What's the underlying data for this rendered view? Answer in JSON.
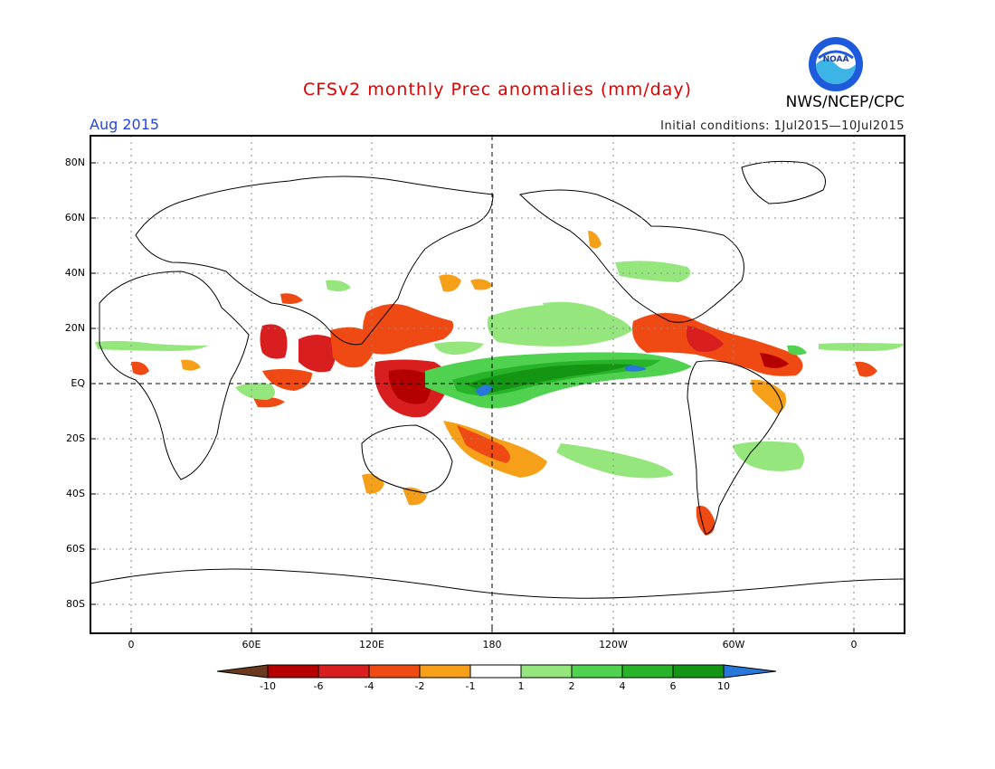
{
  "header": {
    "title": "CFSv2 monthly Prec anomalies (mm/day)",
    "agency": "NWS/NCEP/CPC",
    "valid_month": "Aug 2015",
    "initial_conditions": "Initial conditions: 1Jul2015—10Jul2015",
    "logo_text": "NOAA"
  },
  "axes": {
    "lat_labels": [
      "80N",
      "60N",
      "40N",
      "20N",
      "EQ",
      "20S",
      "40S",
      "60S",
      "80S"
    ],
    "lat_values": [
      80,
      60,
      40,
      20,
      0,
      -20,
      -40,
      -60,
      -80
    ],
    "lon_labels": [
      "0",
      "60E",
      "120E",
      "180",
      "120W",
      "60W",
      "0"
    ],
    "lon_values": [
      0,
      60,
      120,
      180,
      240,
      300,
      360
    ],
    "lon_range": [
      -20,
      380
    ],
    "lat_range": [
      -90,
      90
    ]
  },
  "colorbar": {
    "labels": [
      "-10",
      "-6",
      "-4",
      "-2",
      "-1",
      "1",
      "2",
      "4",
      "6",
      "10"
    ],
    "colors": [
      "#6b3a1e",
      "#b40000",
      "#d81e1e",
      "#f04a14",
      "#f5a018",
      "#ffffff",
      "#96e67e",
      "#50d250",
      "#28b428",
      "#149614",
      "#2878dc"
    ],
    "units": "mm/day"
  },
  "colors": {
    "title": "#e00000",
    "valid_month": "#2244ee",
    "noaa_blue": "#1e5adc"
  }
}
